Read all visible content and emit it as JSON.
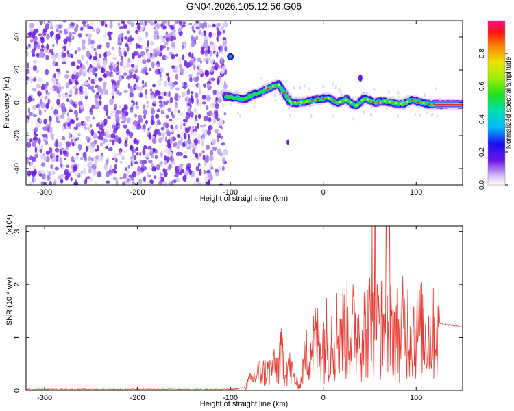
{
  "title": "GN04.2026.105.12.56.G06",
  "chart_data": [
    {
      "type": "heatmap",
      "name": "spectrogram",
      "xlabel": "Height of straight line (km)",
      "ylabel": "Frequency (Hz)",
      "xlim": [
        -320,
        150
      ],
      "ylim": [
        -50,
        50
      ],
      "xticks": [
        -300,
        -200,
        -100,
        0,
        100
      ],
      "yticks": [
        -40,
        -20,
        0,
        20,
        40
      ],
      "noise_region_x": [
        -320,
        -105
      ],
      "ridge": {
        "x": [
          -105,
          -95,
          -85,
          -75,
          -65,
          -55,
          -48,
          -42,
          -35,
          -25,
          -15,
          -5,
          5,
          15,
          25,
          35,
          45,
          55,
          65,
          75,
          85,
          95,
          105,
          115,
          125,
          150
        ],
        "y": [
          4,
          3,
          2,
          5,
          7,
          10,
          11,
          6,
          0,
          0,
          1,
          2,
          3,
          0,
          2,
          -2,
          3,
          0,
          1,
          0,
          -1,
          2,
          0,
          -1,
          -1,
          -1
        ]
      },
      "colorbar": {
        "label": "Normalized spectral amplitude",
        "range": [
          0.0,
          1.0
        ],
        "ticks": [
          "0.0",
          "0.2",
          "0.4",
          "0.6",
          "0.8"
        ]
      }
    },
    {
      "type": "line",
      "name": "snr",
      "xlabel": "Height of straight line (km)",
      "ylabel": "SNR (10 * v/v)",
      "multiplier_label": "(x10⁴)",
      "xlim": [
        -320,
        150
      ],
      "ylim": [
        0,
        3.1
      ],
      "xticks": [
        -300,
        -200,
        -100,
        0,
        100
      ],
      "yticks": [
        0,
        1,
        2,
        3
      ],
      "color": "#e83a32",
      "series": [
        {
          "name": "SNR envelope",
          "x": [
            -320,
            -100,
            -85,
            -80,
            -70,
            -60,
            -50,
            -45,
            -40,
            -35,
            -30,
            -25,
            -20,
            -15,
            -10,
            0,
            10,
            20,
            30,
            40,
            50,
            60,
            70,
            80,
            90,
            100,
            110,
            120,
            130,
            150
          ],
          "y": [
            0.02,
            0.02,
            0.05,
            0.2,
            0.4,
            0.45,
            0.55,
            0.8,
            0.6,
            0.5,
            0.2,
            0.1,
            0.7,
            1.0,
            1.1,
            1.2,
            1.3,
            1.4,
            1.4,
            1.4,
            1.5,
            1.5,
            1.4,
            1.4,
            1.5,
            1.4,
            1.4,
            1.3,
            1.25,
            1.2
          ]
        }
      ]
    }
  ]
}
